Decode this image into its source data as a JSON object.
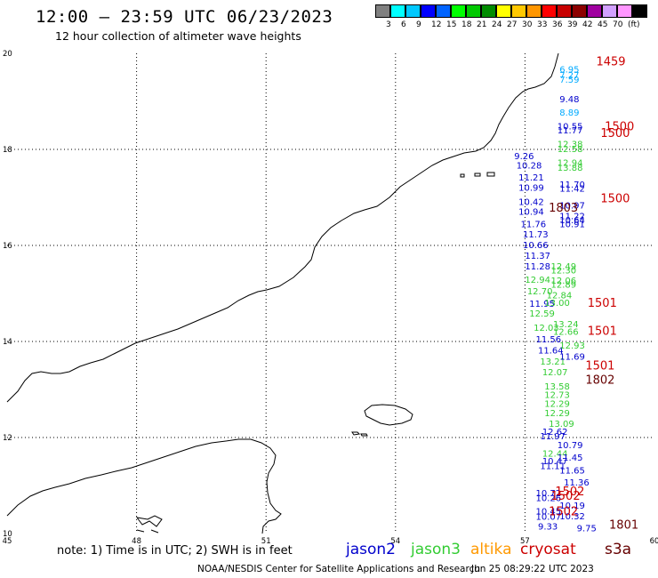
{
  "title": "12:00 – 23:59 UTC 06/23/2023",
  "subtitle": "12 hour collection of altimeter wave heights",
  "colorbar": {
    "colors": [
      "#808080",
      "#00ffff",
      "#00c8ff",
      "#0000ff",
      "#0064ff",
      "#00ff00",
      "#00c800",
      "#008c00",
      "#ffff00",
      "#ffc800",
      "#ff9600",
      "#ff0000",
      "#c80000",
      "#8c0000",
      "#a000a0",
      "#d2a0ff",
      "#ff96ff",
      "#000000"
    ],
    "labels": [
      "3",
      "6",
      "9",
      "12",
      "15",
      "18",
      "21",
      "24",
      "27",
      "30",
      "33",
      "36",
      "39",
      "42",
      "45",
      "70",
      "(ft)"
    ]
  },
  "map": {
    "lon_range": [
      45,
      60
    ],
    "lat_range": [
      10,
      20
    ],
    "lon_ticks": [
      "45",
      "48",
      "51",
      "54",
      "57",
      "60"
    ],
    "lat_ticks": [
      "20",
      "18",
      "16",
      "14",
      "12",
      "10"
    ],
    "grid": "dotted"
  },
  "satellite_colors": {
    "jason2": "#0000cc",
    "jason3": "#33cc33",
    "altika": "#ff9900",
    "cryosat": "#cc0000",
    "s3a": "#660000",
    "cyan": "#00aaff"
  },
  "readings": [
    {
      "lon": 57.8,
      "lat": 19.6,
      "text": "6.95",
      "sat": "cyan"
    },
    {
      "lon": 57.8,
      "lat": 19.48,
      "text": "7.27",
      "sat": "cyan"
    },
    {
      "lon": 57.8,
      "lat": 19.39,
      "text": "7.59",
      "sat": "cyan"
    },
    {
      "lon": 57.8,
      "lat": 18.98,
      "text": "9.48",
      "sat": "jason2"
    },
    {
      "lon": 57.8,
      "lat": 18.7,
      "text": "8.89",
      "sat": "cyan"
    },
    {
      "lon": 57.75,
      "lat": 18.42,
      "text": "10.55",
      "sat": "jason2"
    },
    {
      "lon": 57.75,
      "lat": 18.33,
      "text": "11.77",
      "sat": "jason2"
    },
    {
      "lon": 57.75,
      "lat": 18.05,
      "text": "12.38",
      "sat": "jason3"
    },
    {
      "lon": 57.75,
      "lat": 17.94,
      "text": "12.58",
      "sat": "jason3"
    },
    {
      "lon": 57.75,
      "lat": 17.66,
      "text": "12.94",
      "sat": "jason3"
    },
    {
      "lon": 57.75,
      "lat": 17.56,
      "text": "13.88",
      "sat": "jason3"
    },
    {
      "lon": 57.8,
      "lat": 17.2,
      "text": "11.70",
      "sat": "jason2"
    },
    {
      "lon": 57.8,
      "lat": 17.12,
      "text": "11.42",
      "sat": "jason2"
    },
    {
      "lon": 57.8,
      "lat": 16.77,
      "text": "10.97",
      "sat": "jason2"
    },
    {
      "lon": 57.8,
      "lat": 16.55,
      "text": "11.22",
      "sat": "jason2"
    },
    {
      "lon": 57.8,
      "lat": 16.46,
      "text": "10.64",
      "sat": "jason2"
    },
    {
      "lon": 57.8,
      "lat": 16.38,
      "text": "10.91",
      "sat": "jason2"
    },
    {
      "lon": 56.75,
      "lat": 17.8,
      "text": "9.26",
      "sat": "jason2"
    },
    {
      "lon": 56.8,
      "lat": 17.6,
      "text": "10.28",
      "sat": "jason2"
    },
    {
      "lon": 56.85,
      "lat": 17.35,
      "text": "11.21",
      "sat": "jason2"
    },
    {
      "lon": 56.85,
      "lat": 17.14,
      "text": "10.99",
      "sat": "jason2"
    },
    {
      "lon": 56.85,
      "lat": 16.84,
      "text": "10.42",
      "sat": "jason2"
    },
    {
      "lon": 56.85,
      "lat": 16.64,
      "text": "10.94",
      "sat": "jason2"
    },
    {
      "lon": 56.9,
      "lat": 16.38,
      "text": "11.76",
      "sat": "jason2"
    },
    {
      "lon": 56.95,
      "lat": 16.17,
      "text": "11.73",
      "sat": "jason2"
    },
    {
      "lon": 56.95,
      "lat": 15.94,
      "text": "10.66",
      "sat": "jason2"
    },
    {
      "lon": 57.0,
      "lat": 15.72,
      "text": "11.37",
      "sat": "jason2"
    },
    {
      "lon": 57.0,
      "lat": 15.5,
      "text": "11.28",
      "sat": "jason2"
    },
    {
      "lon": 57.0,
      "lat": 15.22,
      "text": "12.94",
      "sat": "jason3"
    },
    {
      "lon": 57.05,
      "lat": 14.98,
      "text": "12.70",
      "sat": "jason3"
    },
    {
      "lon": 57.1,
      "lat": 14.72,
      "text": "11.95",
      "sat": "jason2"
    },
    {
      "lon": 57.1,
      "lat": 14.52,
      "text": "12.59",
      "sat": "jason3"
    },
    {
      "lon": 57.2,
      "lat": 14.22,
      "text": "12.03",
      "sat": "jason3"
    },
    {
      "lon": 57.25,
      "lat": 13.98,
      "text": "11.56",
      "sat": "jason2"
    },
    {
      "lon": 57.3,
      "lat": 13.75,
      "text": "11.64",
      "sat": "jason2"
    },
    {
      "lon": 57.35,
      "lat": 13.52,
      "text": "13.21",
      "sat": "jason3"
    },
    {
      "lon": 57.4,
      "lat": 13.3,
      "text": "12.07",
      "sat": "jason3"
    },
    {
      "lon": 57.45,
      "lat": 13.0,
      "text": "13.58",
      "sat": "jason3"
    },
    {
      "lon": 57.45,
      "lat": 12.82,
      "text": "12.73",
      "sat": "jason3"
    },
    {
      "lon": 57.45,
      "lat": 12.64,
      "text": "12.29",
      "sat": "jason3"
    },
    {
      "lon": 57.45,
      "lat": 12.44,
      "text": "12.29",
      "sat": "jason3"
    },
    {
      "lon": 57.55,
      "lat": 12.22,
      "text": "13.09",
      "sat": "jason3"
    },
    {
      "lon": 57.4,
      "lat": 12.06,
      "text": "12.62",
      "sat": "jason2"
    },
    {
      "lon": 57.35,
      "lat": 11.96,
      "text": "11.97",
      "sat": "jason2"
    },
    {
      "lon": 57.75,
      "lat": 11.78,
      "text": "10.79",
      "sat": "jason2"
    },
    {
      "lon": 57.4,
      "lat": 11.6,
      "text": "12.44",
      "sat": "jason3"
    },
    {
      "lon": 57.75,
      "lat": 11.52,
      "text": "11.45",
      "sat": "jason2"
    },
    {
      "lon": 57.4,
      "lat": 11.44,
      "text": "10.47",
      "sat": "jason2"
    },
    {
      "lon": 57.35,
      "lat": 11.34,
      "text": "11.11",
      "sat": "jason2"
    },
    {
      "lon": 57.8,
      "lat": 11.25,
      "text": "11.65",
      "sat": "jason2"
    },
    {
      "lon": 57.9,
      "lat": 11.0,
      "text": "11.36",
      "sat": "jason2"
    },
    {
      "lon": 57.25,
      "lat": 10.78,
      "text": "10.72",
      "sat": "jason2"
    },
    {
      "lon": 57.25,
      "lat": 10.68,
      "text": "10.26",
      "sat": "jason2"
    },
    {
      "lon": 57.8,
      "lat": 10.52,
      "text": "10.19",
      "sat": "jason2"
    },
    {
      "lon": 57.25,
      "lat": 10.4,
      "text": "10.45",
      "sat": "jason2"
    },
    {
      "lon": 57.25,
      "lat": 10.29,
      "text": "10.07",
      "sat": "jason2"
    },
    {
      "lon": 57.8,
      "lat": 10.3,
      "text": "10.32",
      "sat": "jason2"
    },
    {
      "lon": 57.3,
      "lat": 10.08,
      "text": "9.33",
      "sat": "jason2"
    },
    {
      "lon": 58.2,
      "lat": 10.05,
      "text": "9.75",
      "sat": "jason2"
    },
    {
      "lon": 57.6,
      "lat": 15.5,
      "text": "12.49",
      "sat": "jason3"
    },
    {
      "lon": 57.6,
      "lat": 15.42,
      "text": "12.30",
      "sat": "jason3"
    },
    {
      "lon": 57.6,
      "lat": 15.2,
      "text": "12.06",
      "sat": "jason3"
    },
    {
      "lon": 57.6,
      "lat": 15.12,
      "text": "12.89",
      "sat": "jason3"
    },
    {
      "lon": 57.5,
      "lat": 14.9,
      "text": "12.84",
      "sat": "jason3"
    },
    {
      "lon": 57.45,
      "lat": 14.74,
      "text": "13.00",
      "sat": "jason3"
    },
    {
      "lon": 57.65,
      "lat": 14.3,
      "text": "13.24",
      "sat": "jason3"
    },
    {
      "lon": 57.65,
      "lat": 14.14,
      "text": "12.66",
      "sat": "jason3"
    },
    {
      "lon": 57.8,
      "lat": 13.85,
      "text": "12.93",
      "sat": "jason3"
    },
    {
      "lon": 57.8,
      "lat": 13.62,
      "text": "11.69",
      "sat": "jason2"
    }
  ],
  "tracks": [
    {
      "lon": 58.65,
      "lat": 19.75,
      "text": "1459",
      "sat": "cryosat"
    },
    {
      "lon": 58.85,
      "lat": 18.4,
      "text": "1500",
      "sat": "cryosat"
    },
    {
      "lon": 58.75,
      "lat": 18.26,
      "text": "1500",
      "sat": "cryosat"
    },
    {
      "lon": 58.75,
      "lat": 16.9,
      "text": "1500",
      "sat": "cryosat"
    },
    {
      "lon": 57.55,
      "lat": 16.7,
      "text": "1803",
      "sat": "s3a"
    },
    {
      "lon": 58.45,
      "lat": 14.72,
      "text": "1501",
      "sat": "cryosat"
    },
    {
      "lon": 58.45,
      "lat": 14.14,
      "text": "1501",
      "sat": "cryosat"
    },
    {
      "lon": 58.4,
      "lat": 13.42,
      "text": "1501",
      "sat": "cryosat"
    },
    {
      "lon": 58.4,
      "lat": 13.12,
      "text": "1802",
      "sat": "s3a"
    },
    {
      "lon": 57.7,
      "lat": 10.8,
      "text": "1502",
      "sat": "cryosat"
    },
    {
      "lon": 57.6,
      "lat": 10.7,
      "text": "1502",
      "sat": "cryosat"
    },
    {
      "lon": 57.55,
      "lat": 10.38,
      "text": "1502",
      "sat": "cryosat"
    },
    {
      "lon": 58.95,
      "lat": 10.1,
      "text": "1801",
      "sat": "s3a"
    }
  ],
  "note": "note: 1) Time is in UTC; 2) SWH is in feet",
  "legend": [
    {
      "text": "jason2",
      "color": "#0000cc"
    },
    {
      "text": "jason3",
      "color": "#33cc33"
    },
    {
      "text": "altika",
      "color": "#ff9900"
    },
    {
      "text": "cryosat",
      "color": "#cc0000"
    },
    {
      "text": "s3a",
      "color": "#660000"
    }
  ],
  "credit": "NOAA/NESDIS Center for Satellite Applications and Research",
  "generated": "Jun 25 08:29:22 UTC 2023"
}
